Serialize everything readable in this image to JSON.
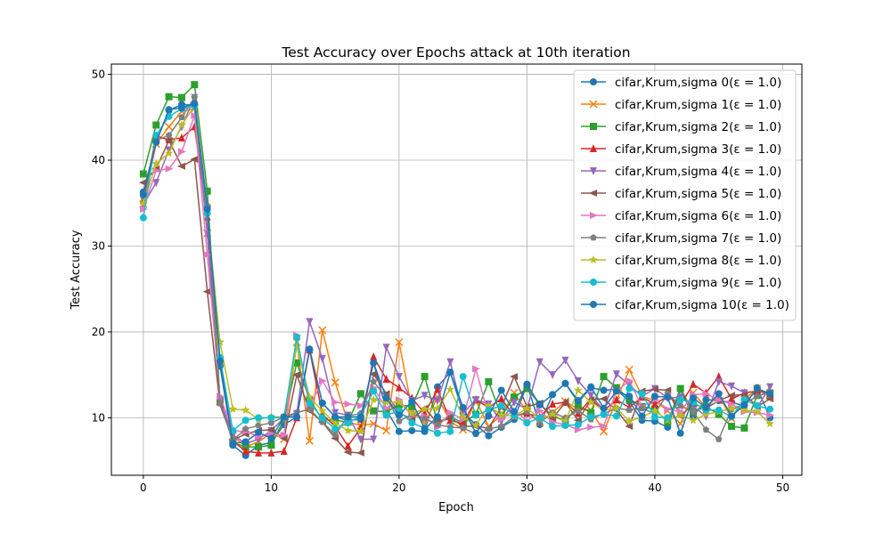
{
  "chart_data": {
    "type": "line",
    "title": "Test Accuracy over Epochs attack at 10th iteration",
    "xlabel": "Epoch",
    "ylabel": "Test Accuracy",
    "xlim": [
      -2.5,
      51.5
    ],
    "ylim": [
      3.3,
      51.2
    ],
    "xticks": [
      0,
      10,
      20,
      30,
      40,
      50
    ],
    "yticks": [
      10,
      20,
      30,
      40,
      50
    ],
    "grid": true,
    "legend_position": "top-right",
    "series": [
      {
        "name": "cifar,Krum,sigma 0(ε = 1.0)",
        "color": "#1f77b4",
        "marker": "o",
        "values": [
          36.3,
          42.1,
          45.8,
          46.5,
          46.4,
          34.6,
          16.0,
          6.8,
          5.6,
          6.8,
          7.1,
          9.2,
          10.1,
          17.9,
          11.7,
          10.1,
          9.7,
          9.8,
          16.4,
          10.9,
          8.4,
          8.5,
          8.4,
          13.6,
          15.3,
          10.6,
          9.2,
          7.9,
          8.9,
          9.8,
          13.9,
          9.2,
          12.7,
          14.0,
          11.8,
          13.5,
          13.2,
          13.3,
          11.9,
          9.7,
          9.6,
          8.9,
          13.3,
          10.2,
          12.1,
          12.0,
          11.8,
          11.4,
          13.5,
          10.0
        ]
      },
      {
        "name": "cifar,Krum,sigma 1(ε = 1.0)",
        "color": "#ff7f0e",
        "marker": "x",
        "values": [
          34.9,
          41.9,
          43.9,
          45.7,
          46.0,
          31.5,
          16.6,
          7.9,
          6.6,
          7.2,
          8.2,
          7.5,
          18.8,
          7.3,
          20.2,
          14.1,
          9.5,
          9.1,
          9.3,
          8.5,
          18.8,
          11.0,
          9.3,
          12.4,
          9.6,
          8.6,
          12.0,
          9.0,
          10.3,
          12.9,
          10.7,
          9.4,
          10.6,
          11.9,
          11.0,
          10.9,
          8.4,
          12.0,
          15.6,
          12.5,
          12.0,
          10.8,
          9.3,
          12.9,
          11.2,
          12.6,
          9.9,
          12.1,
          13.4,
          12.7
        ]
      },
      {
        "name": "cifar,Krum,sigma 2(ε = 1.0)",
        "color": "#2ca02c",
        "marker": "s",
        "values": [
          38.4,
          44.1,
          47.4,
          47.3,
          48.8,
          36.4,
          12.0,
          7.1,
          6.6,
          6.6,
          6.8,
          9.8,
          16.4,
          12.1,
          9.8,
          9.7,
          9.5,
          12.8,
          10.8,
          10.7,
          11.5,
          11.3,
          14.8,
          9.5,
          10.1,
          9.4,
          10.4,
          14.2,
          10.2,
          12.4,
          13.4,
          11.6,
          10.2,
          9.6,
          11.4,
          10.6,
          14.8,
          13.5,
          12.2,
          11.3,
          11.0,
          9.5,
          13.4,
          10.7,
          11.3,
          10.4,
          9.0,
          8.8,
          12.6,
          12.9
        ]
      },
      {
        "name": "cifar,Krum,sigma 3(ε = 1.0)",
        "color": "#d62728",
        "marker": "^",
        "values": [
          35.3,
          42.8,
          42.4,
          42.6,
          43.9,
          33.4,
          12.0,
          7.3,
          6.1,
          5.9,
          5.9,
          6.1,
          10.0,
          17.9,
          10.4,
          9.0,
          6.7,
          8.8,
          17.1,
          14.5,
          13.5,
          12.3,
          10.5,
          13.3,
          9.7,
          9.3,
          12.1,
          11.2,
          12.2,
          10.2,
          10.5,
          10.1,
          11.6,
          11.8,
          10.5,
          12.2,
          10.8,
          12.1,
          11.2,
          12.4,
          11.6,
          12.5,
          11.5,
          13.9,
          12.9,
          14.8,
          12.2,
          12.9,
          13.1,
          12.8
        ]
      },
      {
        "name": "cifar,Krum,sigma 4(ε = 1.0)",
        "color": "#9467bd",
        "marker": "v",
        "values": [
          34.8,
          37.4,
          41.2,
          43.9,
          47.3,
          31.4,
          12.0,
          8.0,
          7.0,
          7.5,
          8.5,
          10.0,
          10.5,
          21.2,
          16.9,
          10.6,
          10.3,
          7.5,
          7.5,
          18.2,
          14.8,
          12.0,
          12.6,
          12.0,
          16.5,
          10.5,
          12.1,
          11.6,
          9.6,
          11.8,
          11.0,
          16.5,
          15.0,
          16.7,
          14.3,
          12.6,
          10.9,
          15.1,
          13.8,
          12.5,
          13.4,
          12.3,
          12.4,
          11.3,
          10.2,
          14.2,
          13.7,
          12.9,
          11.2,
          13.6
        ]
      },
      {
        "name": "cifar,Krum,sigma 5(ε = 1.0)",
        "color": "#8c564b",
        "marker": "<",
        "values": [
          37.4,
          39.0,
          42.3,
          39.3,
          40.1,
          24.7,
          11.5,
          7.4,
          8.1,
          8.5,
          8.6,
          7.6,
          15.0,
          10.8,
          9.5,
          7.6,
          6.0,
          5.9,
          15.1,
          12.8,
          10.6,
          9.8,
          11.1,
          9.4,
          10.0,
          9.0,
          9.0,
          8.8,
          11.2,
          14.8,
          11.3,
          11.7,
          9.9,
          11.8,
          9.7,
          12.1,
          12.2,
          10.9,
          9.0,
          13.1,
          13.3,
          13.2,
          10.2,
          11.6,
          11.1,
          12.0,
          12.6,
          12.7,
          11.3,
          12.2
        ]
      },
      {
        "name": "cifar,Krum,sigma 6(ε = 1.0)",
        "color": "#e377c2",
        "marker": ">",
        "values": [
          34.3,
          38.8,
          39.0,
          41.0,
          45.2,
          29.0,
          12.5,
          8.5,
          8.4,
          7.8,
          8.1,
          8.0,
          19.6,
          11.3,
          14.3,
          11.8,
          11.6,
          11.4,
          13.5,
          11.1,
          12.1,
          10.2,
          10.2,
          8.9,
          10.6,
          9.8,
          15.7,
          10.2,
          9.8,
          10.9,
          9.6,
          10.8,
          9.5,
          9.2,
          8.6,
          8.9,
          9.0,
          13.1,
          14.3,
          11.3,
          12.1,
          11.0,
          10.7,
          12.7,
          12.8,
          12.1,
          11.6,
          10.7,
          10.6,
          10.3
        ]
      },
      {
        "name": "cifar,Krum,sigma 7(ε = 1.0)",
        "color": "#7f7f7f",
        "marker": "p",
        "values": [
          35.7,
          42.3,
          42.9,
          45.0,
          47.3,
          34.7,
          11.7,
          7.4,
          8.7,
          9.1,
          9.4,
          10.1,
          10.6,
          11.0,
          9.5,
          8.0,
          10.2,
          10.5,
          14.2,
          12.4,
          9.6,
          10.4,
          9.9,
          9.2,
          8.9,
          8.8,
          8.1,
          8.7,
          9.0,
          10.1,
          10.7,
          9.5,
          10.6,
          10.0,
          10.8,
          9.8,
          10.5,
          11.1,
          10.9,
          11.1,
          10.5,
          12.8,
          11.4,
          10.7,
          8.6,
          7.5,
          11.0,
          11.6,
          12.5,
          13.0
        ]
      },
      {
        "name": "cifar,Krum,sigma 8(ε = 1.0)",
        "color": "#bcbd22",
        "marker": "*",
        "values": [
          35.0,
          39.6,
          40.8,
          44.1,
          46.3,
          33.7,
          18.8,
          11.0,
          10.9,
          9.8,
          10.1,
          10.1,
          18.3,
          12.4,
          10.8,
          9.4,
          8.5,
          8.4,
          12.1,
          11.8,
          11.8,
          10.5,
          11.0,
          11.1,
          13.3,
          10.1,
          9.1,
          11.4,
          10.3,
          10.2,
          11.1,
          9.9,
          10.4,
          9.6,
          13.2,
          11.8,
          10.9,
          11.1,
          9.6,
          10.1,
          10.8,
          9.7,
          10.3,
          9.7,
          10.4,
          10.7,
          11.1,
          10.9,
          10.7,
          9.3
        ]
      },
      {
        "name": "cifar,Krum,sigma 9(ε = 1.0)",
        "color": "#17becf",
        "marker": "o",
        "values": [
          33.3,
          42.9,
          45.1,
          46.0,
          46.3,
          33.8,
          17.0,
          8.5,
          9.7,
          10.0,
          10.0,
          10.0,
          19.4,
          11.7,
          10.0,
          8.7,
          9.4,
          10.2,
          13.1,
          10.3,
          10.8,
          9.4,
          8.8,
          8.2,
          8.4,
          14.8,
          10.3,
          10.9,
          11.4,
          10.3,
          9.4,
          10.0,
          9.0,
          9.1,
          9.2,
          10.1,
          10.4,
          10.2,
          13.4,
          12.8,
          10.1,
          10.0,
          12.1,
          11.8,
          10.9,
          10.9,
          10.1,
          12.1,
          11.4,
          11.0
        ]
      },
      {
        "name": "cifar,Krum,sigma 10(ε = 1.0)",
        "color": "#1f77b4",
        "marker": "o",
        "values": [
          36.0,
          42.1,
          45.9,
          46.1,
          46.6,
          34.3,
          16.6,
          7.0,
          7.2,
          8.3,
          7.6,
          10.1,
          10.1,
          18.0,
          11.7,
          10.1,
          10.1,
          10.1,
          16.4,
          12.3,
          10.3,
          11.9,
          8.7,
          10.1,
          15.3,
          11.2,
          8.2,
          10.2,
          13.2,
          10.7,
          13.9,
          11.5,
          12.7,
          14.0,
          12.0,
          13.6,
          11.1,
          13.1,
          12.5,
          10.2,
          12.5,
          12.4,
          8.2,
          12.3,
          11.2,
          12.8,
          10.2,
          11.5,
          13.4,
          12.8
        ]
      }
    ]
  }
}
